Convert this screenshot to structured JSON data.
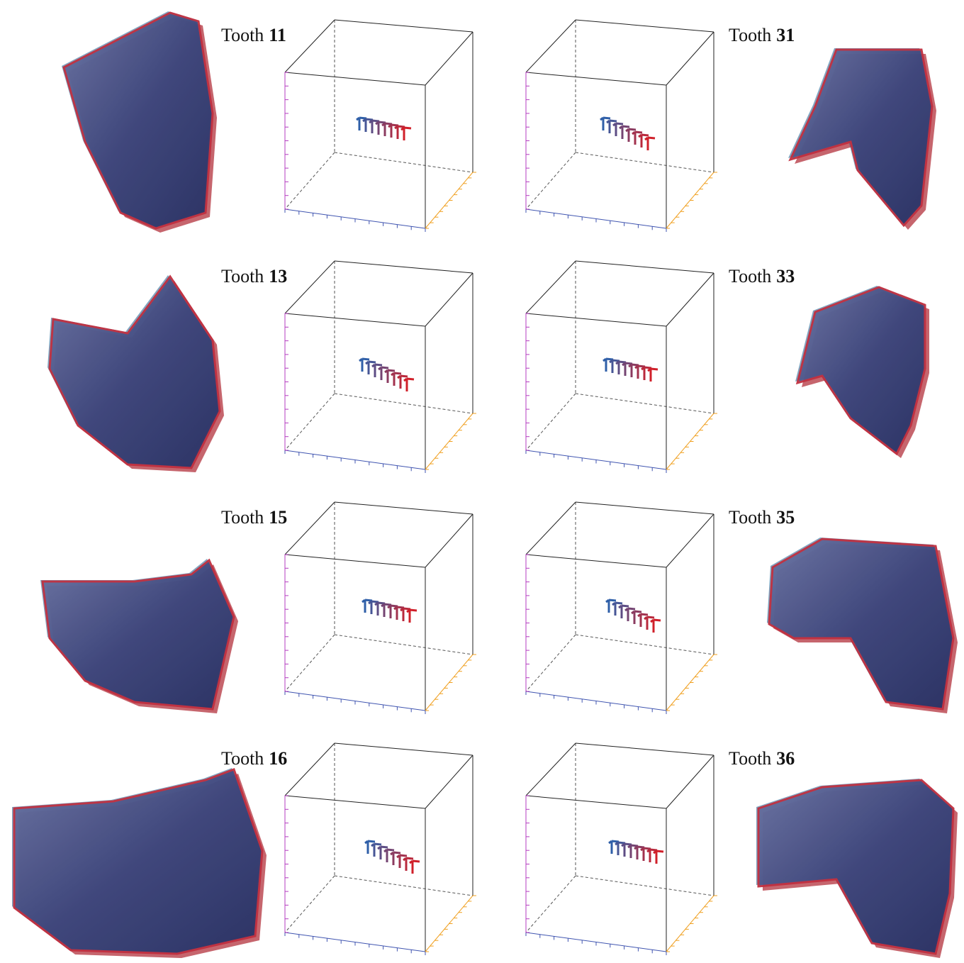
{
  "rows": [
    {
      "left": {
        "label": "Tooth",
        "number": "11"
      },
      "right": {
        "label": "Tooth",
        "number": "31"
      }
    },
    {
      "left": {
        "label": "Tooth",
        "number": "13"
      },
      "right": {
        "label": "Tooth",
        "number": "33"
      }
    },
    {
      "left": {
        "label": "Tooth",
        "number": "15"
      },
      "right": {
        "label": "Tooth",
        "number": "35"
      }
    },
    {
      "left": {
        "label": "Tooth",
        "number": "16"
      },
      "right": {
        "label": "Tooth",
        "number": "36"
      }
    }
  ]
}
